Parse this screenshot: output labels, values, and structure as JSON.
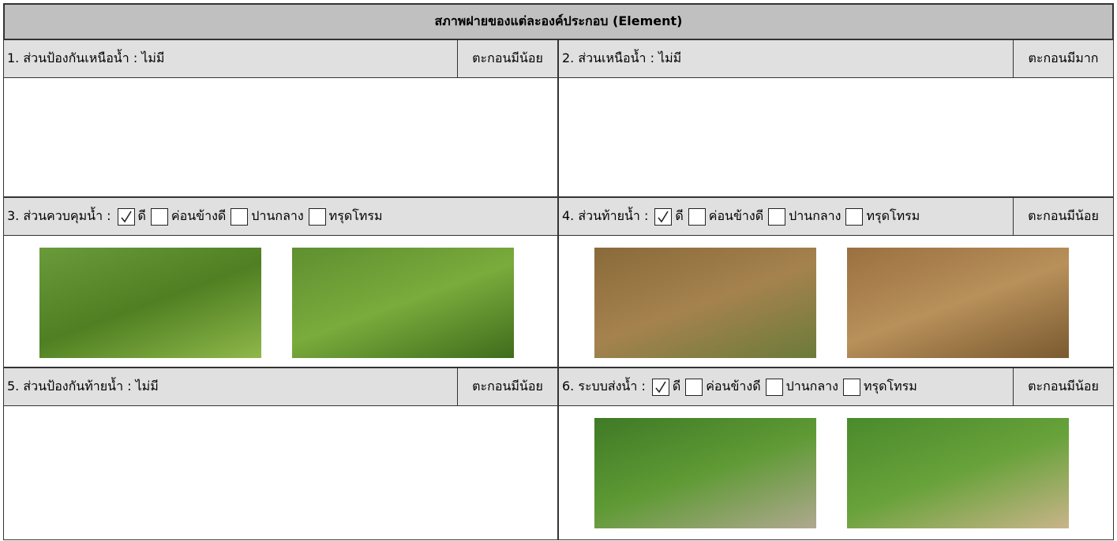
{
  "header": {
    "title": "สภาพฝายของแต่ละองค์ประกอบ (Element)"
  },
  "elements": [
    {
      "label": "1. ส่วนป้องกันเหนือน้ำ : ไม่มี",
      "sediment": "ตะกอนมีน้อย"
    },
    {
      "label": "2. ส่วนเหนือน้ำ : ไม่มี",
      "sediment": "ตะกอนมีมาก"
    },
    {
      "label": "3. ส่วนควบคุมน้ำ :",
      "options": [
        {
          "text": "ดี",
          "checked": true
        },
        {
          "text": "ค่อนข้างดี",
          "checked": false
        },
        {
          "text": "ปานกลาง",
          "checked": false
        },
        {
          "text": "ทรุดโทรม",
          "checked": false
        }
      ]
    },
    {
      "label": "4. ส่วนท้ายน้ำ :",
      "options": [
        {
          "text": "ดี",
          "checked": true
        },
        {
          "text": "ค่อนข้างดี",
          "checked": false
        },
        {
          "text": "ปานกลาง",
          "checked": false
        },
        {
          "text": "ทรุดโทรม",
          "checked": false
        }
      ],
      "sediment": "ตะกอนมีน้อย"
    },
    {
      "label": "5. ส่วนป้องกันท้ายน้ำ : ไม่มี",
      "sediment": "ตะกอนมีน้อย"
    },
    {
      "label": "6. ระบบส่งน้ำ :",
      "options": [
        {
          "text": "ดี",
          "checked": true
        },
        {
          "text": "ค่อนข้างดี",
          "checked": false
        },
        {
          "text": "ปานกลาง",
          "checked": false
        },
        {
          "text": "ทรุดโทรม",
          "checked": false
        }
      ],
      "sediment": "ตะกอนมีน้อย"
    }
  ]
}
